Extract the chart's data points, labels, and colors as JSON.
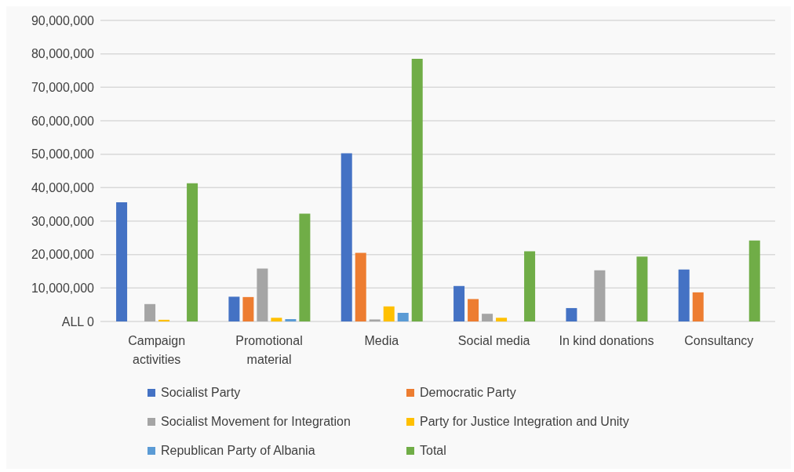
{
  "chart_data": {
    "type": "bar",
    "categories": [
      "Campaign activities",
      "Promotional material",
      "Media",
      "Social media",
      "In kind donations",
      "Consultancy"
    ],
    "series": [
      {
        "name": "Socialist Party",
        "color": "#4472c4",
        "values": [
          35600000,
          7400000,
          50300000,
          10600000,
          4000000,
          15500000
        ]
      },
      {
        "name": "Democratic Party",
        "color": "#ed7d31",
        "values": [
          null,
          7300000,
          20500000,
          6700000,
          null,
          8700000
        ]
      },
      {
        "name": "Socialist Movement for Integration",
        "color": "#a5a5a5",
        "values": [
          5200000,
          15800000,
          600000,
          2300000,
          15300000,
          null
        ]
      },
      {
        "name": "Party for Justice Integration and Unity",
        "color": "#ffc000",
        "values": [
          500000,
          1100000,
          4500000,
          1100000,
          null,
          null
        ]
      },
      {
        "name": "Republican Party of Albania",
        "color": "#5b9bd5",
        "values": [
          null,
          700000,
          2600000,
          null,
          null,
          null
        ]
      },
      {
        "name": "Total",
        "color": "#70ad47",
        "values": [
          41300000,
          32200000,
          78500000,
          21000000,
          19400000,
          24200000
        ]
      }
    ],
    "ylim": [
      0,
      90000000
    ],
    "yticks": [
      {
        "value": 0,
        "label": "ALL 0"
      },
      {
        "value": 10000000,
        "label": "10,000,000"
      },
      {
        "value": 20000000,
        "label": "20,000,000"
      },
      {
        "value": 30000000,
        "label": "30,000,000"
      },
      {
        "value": 40000000,
        "label": "40,000,000"
      },
      {
        "value": 50000000,
        "label": "50,000,000"
      },
      {
        "value": 60000000,
        "label": "60,000,000"
      },
      {
        "value": 70000000,
        "label": "70,000,000"
      },
      {
        "value": 80000000,
        "label": "80,000,000"
      },
      {
        "value": 90000000,
        "label": "90,000,000"
      }
    ],
    "grid": "y",
    "legend": "bottom"
  }
}
